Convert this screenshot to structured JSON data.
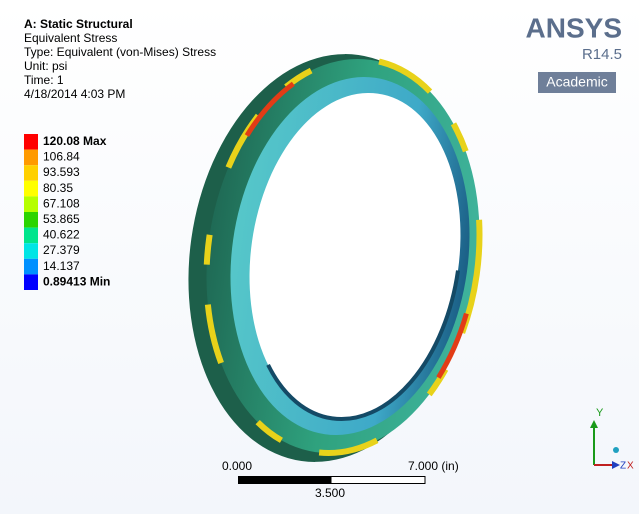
{
  "header": {
    "lines": [
      "A: Static Structural",
      "Equivalent Stress",
      "Type: Equivalent (von-Mises) Stress",
      "Unit: psi",
      "Time: 1",
      "4/18/2014 4:03 PM"
    ]
  },
  "legend": {
    "entries": [
      {
        "label": "120.08 Max",
        "color": "#ff0000"
      },
      {
        "label": "106.84",
        "color": "#ff9a00"
      },
      {
        "label": "93.593",
        "color": "#ffd000"
      },
      {
        "label": "80.35",
        "color": "#ffff00"
      },
      {
        "label": "67.108",
        "color": "#b5ff00"
      },
      {
        "label": "53.865",
        "color": "#2bd400"
      },
      {
        "label": "40.622",
        "color": "#00e58c"
      },
      {
        "label": "27.379",
        "color": "#00e5e5"
      },
      {
        "label": "14.137",
        "color": "#0090ff"
      },
      {
        "label": "0.89413 Min",
        "color": "#0000ff"
      }
    ]
  },
  "logo": {
    "name": "ANSYS",
    "version": "R14.5",
    "edition": "Academic"
  },
  "scale_bar": {
    "start": "0.000",
    "end": "7.000 (in)",
    "middle": "3.500"
  },
  "triad": {
    "y": "Y",
    "z": "Z",
    "x": "X"
  }
}
